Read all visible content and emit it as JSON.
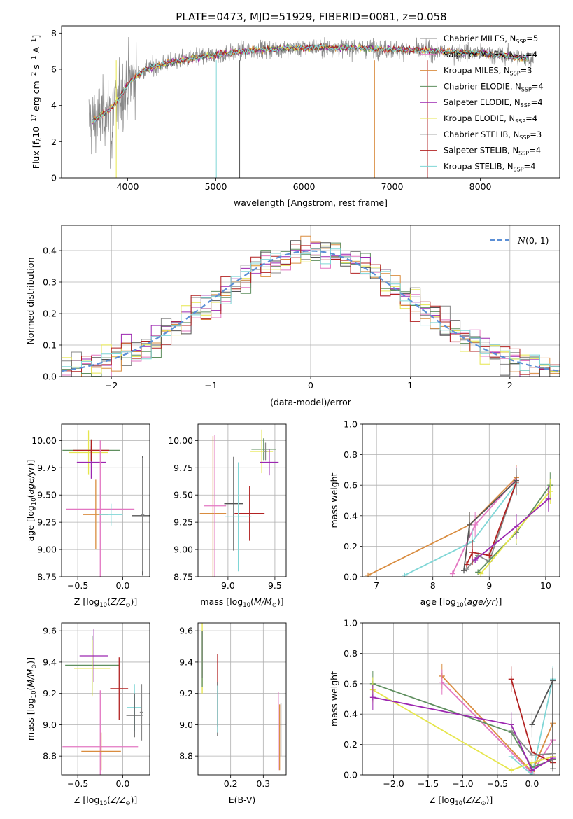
{
  "title": "PLATE=0473, MJD=51929, FIBERID=0081, z=0.058",
  "models": [
    {
      "label": "Chabrier MILES, N",
      "sub": "SSP",
      "n": "=5",
      "color": "#888888"
    },
    {
      "label": "Salpeter MILES, N",
      "sub": "SSP",
      "n": "=4",
      "color": "#e377c2"
    },
    {
      "label": "Kroupa MILES, N",
      "sub": "SSP",
      "n": "=3",
      "color": "#d98c3f"
    },
    {
      "label": "Chabrier ELODIE, N",
      "sub": "SSP",
      "n": "=4",
      "color": "#5f8f5f"
    },
    {
      "label": "Salpeter ELODIE, N",
      "sub": "SSP",
      "n": "=4",
      "color": "#9c27b0"
    },
    {
      "label": "Kroupa ELODIE, N",
      "sub": "SSP",
      "n": "=4",
      "color": "#e6e64c"
    },
    {
      "label": "Chabrier STELIB, N",
      "sub": "SSP",
      "n": "=3",
      "color": "#555555"
    },
    {
      "label": "Salpeter STELIB, N",
      "sub": "SSP",
      "n": "=4",
      "color": "#b22222"
    },
    {
      "label": "Kroupa STELIB, N",
      "sub": "SSP",
      "n": "=4",
      "color": "#7fd6d6"
    }
  ],
  "chart_data": [
    {
      "id": "spectrum",
      "type": "line",
      "xlabel": "wavelength [Angstrom, rest frame]",
      "ylabel": "Flux [f",
      "xlim": [
        3250,
        8900
      ],
      "ylim": [
        0,
        8.4
      ],
      "xticks": [
        4000,
        5000,
        6000,
        7000,
        8000
      ],
      "yticks": [
        0,
        2,
        4,
        6,
        8
      ],
      "continuum_x": [
        3600,
        3750,
        3900,
        4000,
        4200,
        4500,
        5000,
        5500,
        6000,
        6500,
        7000,
        7500,
        8000,
        8500
      ],
      "continuum_y": [
        3.1,
        3.6,
        4.3,
        5.2,
        6.0,
        6.4,
        6.8,
        7.1,
        7.2,
        7.2,
        7.1,
        7.0,
        6.9,
        6.6
      ],
      "legend": "right"
    },
    {
      "id": "residuals",
      "type": "bar",
      "xlabel": "(data-model)/error",
      "ylabel": "Normed distribution",
      "xlim": [
        -2.5,
        2.5
      ],
      "ylim": [
        0,
        0.48
      ],
      "xticks": [
        -2,
        -1,
        0,
        1,
        2
      ],
      "yticks": [
        0.0,
        0.1,
        0.2,
        0.3,
        0.4
      ],
      "bin_width": 0.1,
      "reference": {
        "name": "N(0,1)",
        "color": "#5b8fd6"
      },
      "legend": "top-right"
    },
    {
      "id": "age-vs-Z",
      "type": "scatter",
      "xlabel": "Z [log",
      "ylabel": "age  [log",
      "xlim": [
        -0.68,
        0.3
      ],
      "ylim": [
        8.75,
        10.15
      ],
      "xticks": [
        -0.5,
        0.0
      ],
      "yticks": [
        8.75,
        9.0,
        9.25,
        9.5,
        9.75,
        10.0
      ],
      "points": [
        {
          "m": 3,
          "x": -0.35,
          "xerr": 0.32,
          "y": 9.91,
          "yerr": 0.1
        },
        {
          "m": 5,
          "x": -0.38,
          "xerr": 0.22,
          "y": 9.89,
          "yerr": 0.2
        },
        {
          "m": 4,
          "x": -0.35,
          "xerr": 0.16,
          "y": 9.8,
          "yerr": 0.15
        },
        {
          "m": 7,
          "x": -0.35,
          "xerr": 0.2,
          "y": 9.91,
          "yerr": 0.1
        },
        {
          "m": 1,
          "x": -0.25,
          "xerr": 0.38,
          "y": 9.37,
          "yerr": 0.63
        },
        {
          "m": 2,
          "x": -0.3,
          "xerr": 0.14,
          "y": 9.32,
          "yerr": 0.32
        },
        {
          "m": 8,
          "x": -0.13,
          "xerr": 0.13,
          "y": 9.32,
          "yerr": 0.1
        },
        {
          "m": 6,
          "x": 0.22,
          "xerr": 0.12,
          "y": 9.31,
          "yerr": 0.55
        },
        {
          "m": 0,
          "x": 0.22,
          "xerr": 0.02,
          "y": 9.32,
          "yerr": 0.52
        }
      ]
    },
    {
      "id": "age-vs-mass",
      "type": "scatter",
      "xlabel": "mass [log",
      "ylabel": "",
      "xlim": [
        8.68,
        9.62
      ],
      "ylim": [
        8.75,
        10.15
      ],
      "xticks": [
        9.0,
        9.5
      ],
      "yticks": [
        8.75,
        9.0,
        9.25,
        9.5,
        9.75,
        10.0
      ],
      "points": [
        {
          "m": 2,
          "x": 8.84,
          "xerr": 0.14,
          "y": 9.33,
          "yerr": 0.71
        },
        {
          "m": 1,
          "x": 8.86,
          "xerr": 0.12,
          "y": 9.4,
          "yerr": 0.65
        },
        {
          "m": 6,
          "x": 9.06,
          "xerr": 0.1,
          "y": 9.42,
          "yerr": 0.43
        },
        {
          "m": 7,
          "x": 9.23,
          "xerr": 0.16,
          "y": 9.33,
          "yerr": 0.25
        },
        {
          "m": 8,
          "x": 9.11,
          "xerr": 0.14,
          "y": 9.3,
          "yerr": 0.5
        },
        {
          "m": 3,
          "x": 9.38,
          "xerr": 0.13,
          "y": 9.92,
          "yerr": 0.1
        },
        {
          "m": 5,
          "x": 9.36,
          "xerr": 0.12,
          "y": 9.9,
          "yerr": 0.2
        },
        {
          "m": 4,
          "x": 9.44,
          "xerr": 0.1,
          "y": 9.8,
          "yerr": 0.12
        },
        {
          "m": 0,
          "x": 9.4,
          "xerr": 0.02,
          "y": 9.9,
          "yerr": 0.08
        }
      ]
    },
    {
      "id": "weight-vs-age",
      "type": "line",
      "xlabel": "age  [log",
      "ylabel": "mass weight",
      "xlim": [
        6.75,
        10.25
      ],
      "ylim": [
        0,
        1
      ],
      "xticks": [
        7,
        8,
        9,
        10
      ],
      "yticks": [
        0.0,
        0.2,
        0.4,
        0.6,
        0.8,
        1.0
      ],
      "series": [
        {
          "m": 2,
          "x": [
            6.85,
            8.65,
            9.48
          ],
          "y": [
            0.01,
            0.34,
            0.65
          ]
        },
        {
          "m": 1,
          "x": [
            8.35,
            8.75,
            9.48
          ],
          "y": [
            0.02,
            0.34,
            0.64
          ]
        },
        {
          "m": 0,
          "x": [
            8.6,
            8.8,
            9.0,
            9.48
          ],
          "y": [
            0.05,
            0.14,
            0.1,
            0.62
          ]
        },
        {
          "m": 8,
          "x": [
            7.5,
            8.7,
            9.48
          ],
          "y": [
            0.01,
            0.23,
            0.61
          ]
        },
        {
          "m": 7,
          "x": [
            8.6,
            8.7,
            9.0,
            9.48
          ],
          "y": [
            0.08,
            0.16,
            0.14,
            0.62
          ]
        },
        {
          "m": 3,
          "x": [
            8.8,
            9.48,
            10.08
          ],
          "y": [
            0.03,
            0.29,
            0.6
          ]
        },
        {
          "m": 5,
          "x": [
            8.85,
            9.48,
            10.08
          ],
          "y": [
            0.02,
            0.3,
            0.56
          ]
        },
        {
          "m": 4,
          "x": [
            8.75,
            9.48,
            10.05
          ],
          "y": [
            0.11,
            0.33,
            0.51
          ]
        },
        {
          "m": 6,
          "x": [
            8.55,
            8.65,
            9.48
          ],
          "y": [
            0.04,
            0.34,
            0.63
          ]
        }
      ]
    },
    {
      "id": "mass-vs-Z",
      "type": "scatter",
      "xlabel": "Z [log",
      "ylabel": "mass [log",
      "xlim": [
        -0.68,
        0.3
      ],
      "ylim": [
        8.68,
        9.65
      ],
      "xticks": [
        -0.5,
        0.0
      ],
      "yticks": [
        8.8,
        9.0,
        9.2,
        9.4,
        9.6
      ],
      "points": [
        {
          "m": 3,
          "x": -0.34,
          "xerr": 0.3,
          "y": 9.38,
          "yerr": 0.19
        },
        {
          "m": 5,
          "x": -0.34,
          "xerr": 0.2,
          "y": 9.36,
          "yerr": 0.18
        },
        {
          "m": 4,
          "x": -0.32,
          "xerr": 0.16,
          "y": 9.44,
          "yerr": 0.17
        },
        {
          "m": 7,
          "x": -0.04,
          "xerr": 0.1,
          "y": 9.23,
          "yerr": 0.2
        },
        {
          "m": 1,
          "x": -0.25,
          "xerr": 0.42,
          "y": 8.86,
          "yerr": 0.36
        },
        {
          "m": 2,
          "x": -0.24,
          "xerr": 0.22,
          "y": 8.83,
          "yerr": 0.12
        },
        {
          "m": 8,
          "x": 0.13,
          "xerr": 0.08,
          "y": 9.11,
          "yerr": 0.15
        },
        {
          "m": 6,
          "x": 0.13,
          "xerr": 0.09,
          "y": 9.06,
          "yerr": 0.14
        },
        {
          "m": 0,
          "x": 0.21,
          "xerr": 0.02,
          "y": 9.08,
          "yerr": 0.18
        }
      ]
    },
    {
      "id": "mass-vs-EBV",
      "type": "scatter",
      "xlabel": "E(B-V)",
      "ylabel": "",
      "xlim": [
        0.1,
        0.37
      ],
      "ylim": [
        8.68,
        9.65
      ],
      "xticks": [
        0.2,
        0.3
      ],
      "yticks": [
        8.8,
        9.0,
        9.2,
        9.4,
        9.6
      ],
      "points": [
        {
          "m": 5,
          "x": 0.113,
          "xerr": 0.0,
          "y": 9.45,
          "yerr": 0.25
        },
        {
          "m": 4,
          "x": 0.113,
          "xerr": 0.0,
          "y": 9.45,
          "yerr": 0.15
        },
        {
          "m": 3,
          "x": 0.113,
          "xerr": 0.0,
          "y": 9.42,
          "yerr": 0.18
        },
        {
          "m": 7,
          "x": 0.16,
          "xerr": 0.0,
          "y": 9.22,
          "yerr": 0.23
        },
        {
          "m": 6,
          "x": 0.16,
          "xerr": 0.0,
          "y": 9.1,
          "yerr": 0.17
        },
        {
          "m": 8,
          "x": 0.16,
          "xerr": 0.0,
          "y": 9.1,
          "yerr": 0.15
        },
        {
          "m": 1,
          "x": 0.346,
          "xerr": 0.0,
          "y": 8.96,
          "yerr": 0.25
        },
        {
          "m": 2,
          "x": 0.35,
          "xerr": 0.0,
          "y": 8.92,
          "yerr": 0.21
        },
        {
          "m": 0,
          "x": 0.354,
          "xerr": 0.0,
          "y": 8.97,
          "yerr": 0.17
        }
      ]
    },
    {
      "id": "weight-vs-Z",
      "type": "line",
      "xlabel": "Z [log",
      "ylabel": "mass weight",
      "xlim": [
        -2.45,
        0.4
      ],
      "ylim": [
        0,
        1
      ],
      "xticks": [
        -2.0,
        -1.5,
        -1.0,
        -0.5,
        0.0
      ],
      "yticks": [
        0.0,
        0.2,
        0.4,
        0.6,
        0.8,
        1.0
      ],
      "series": [
        {
          "m": 2,
          "x": [
            -1.3,
            0.0,
            0.3
          ],
          "y": [
            0.65,
            0.02,
            0.34
          ]
        },
        {
          "m": 1,
          "x": [
            -1.3,
            0.0,
            0.3
          ],
          "y": [
            0.61,
            0.01,
            0.23
          ]
        },
        {
          "m": 8,
          "x": [
            -0.3,
            0.0,
            0.3
          ],
          "y": [
            0.12,
            0.0,
            0.63
          ]
        },
        {
          "m": 7,
          "x": [
            -0.3,
            0.0,
            0.3
          ],
          "y": [
            0.63,
            0.15,
            0.08
          ]
        },
        {
          "m": 6,
          "x": [
            0.0,
            0.3,
            0.3
          ],
          "y": [
            0.33,
            0.62,
            0.04
          ]
        },
        {
          "m": 3,
          "x": [
            -2.3,
            -0.3,
            0.0,
            0.3
          ],
          "y": [
            0.6,
            0.28,
            0.05,
            0.1
          ]
        },
        {
          "m": 5,
          "x": [
            -2.3,
            -0.3,
            0.0,
            0.3
          ],
          "y": [
            0.56,
            0.03,
            0.08,
            0.12
          ]
        },
        {
          "m": 4,
          "x": [
            -2.3,
            -0.3,
            0.0,
            0.3
          ],
          "y": [
            0.51,
            0.33,
            0.03,
            0.11
          ]
        },
        {
          "m": 0,
          "x": [
            -0.3,
            0.0,
            0.3
          ],
          "y": [
            0.29,
            0.13,
            0.14
          ]
        }
      ]
    }
  ]
}
